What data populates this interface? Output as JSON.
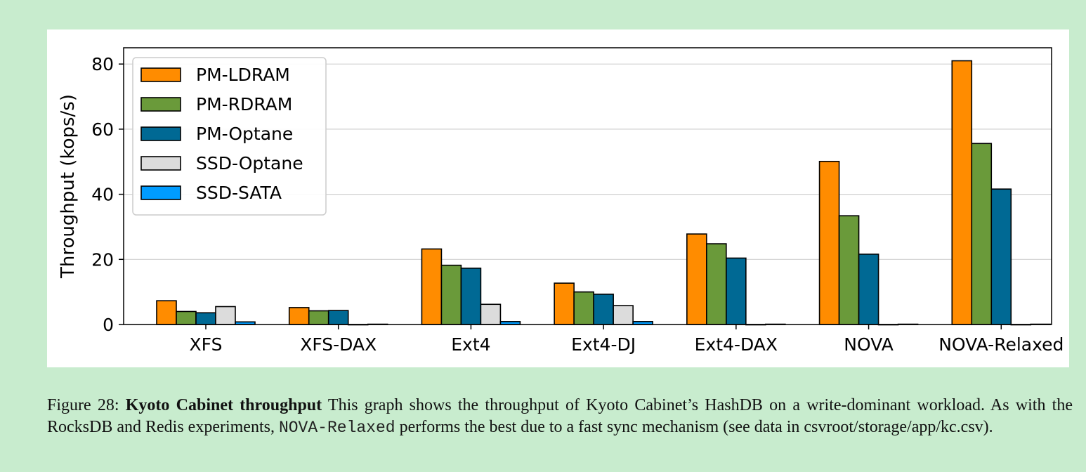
{
  "chart_data": {
    "type": "bar",
    "ylabel": "Throughput (kops/s)",
    "xlabel": "",
    "ylim": [
      0,
      85
    ],
    "yticks": [
      0,
      20,
      40,
      60,
      80
    ],
    "grid": "horizontal",
    "legend_placement": "top-left",
    "categories": [
      "XFS",
      "XFS-DAX",
      "Ext4",
      "Ext4-DJ",
      "Ext4-DAX",
      "NOVA",
      "NOVA-Relaxed"
    ],
    "series": [
      {
        "name": "PM-LDRAM",
        "color": "#ff8c00",
        "values": [
          7.3,
          5.2,
          23.2,
          12.7,
          27.8,
          50.1,
          81.0
        ]
      },
      {
        "name": "PM-RDRAM",
        "color": "#6a9a3a",
        "values": [
          4.0,
          4.2,
          18.2,
          10.0,
          24.8,
          33.4,
          55.6
        ]
      },
      {
        "name": "PM-Optane",
        "color": "#006994",
        "values": [
          3.6,
          4.3,
          17.3,
          9.3,
          20.4,
          21.6,
          41.6
        ]
      },
      {
        "name": "SSD-Optane",
        "color": "#dcdcdc",
        "values": [
          5.5,
          0.0,
          6.2,
          5.8,
          0.0,
          0.0,
          0.0
        ]
      },
      {
        "name": "SSD-SATA",
        "color": "#009cff",
        "values": [
          0.8,
          0.1,
          0.9,
          0.9,
          0.1,
          0.1,
          0.1
        ]
      }
    ]
  },
  "caption": {
    "figure_label": "Figure 28:",
    "title": "Kyoto Cabinet throughput",
    "text_1": "This graph shows the throughput of Kyoto Cabinet’s HashDB on a write-dominant workload. As with the RocksDB and Redis experiments,",
    "code": "NOVA-Relaxed",
    "text_2": "performs the best due to a fast sync mechanism (see data in csvroot/storage/app/kc.csv)."
  }
}
